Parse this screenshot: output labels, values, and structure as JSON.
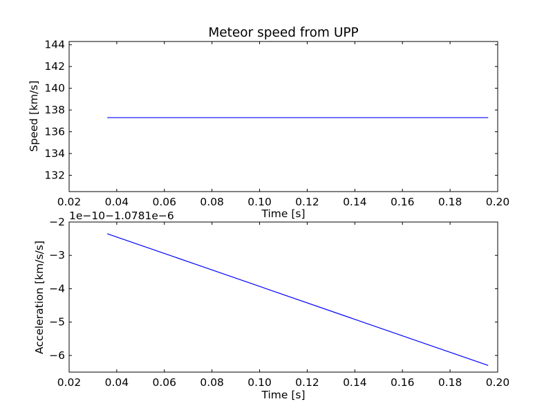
{
  "chart_data": [
    {
      "type": "line",
      "title": "Meteor speed from  UPP",
      "xlabel": "Time [s]",
      "ylabel": "Speed [km/s]",
      "xlim": [
        0.02,
        0.2
      ],
      "ylim": [
        130.5,
        144.3
      ],
      "xticks": [
        0.02,
        0.04,
        0.06,
        0.08,
        0.1,
        0.12,
        0.14,
        0.16,
        0.18,
        0.2
      ],
      "xtick_labels": [
        "0.02",
        "0.04",
        "0.06",
        "0.08",
        "0.10",
        "0.12",
        "0.14",
        "0.16",
        "0.18",
        "0.20"
      ],
      "yticks": [
        132,
        134,
        136,
        138,
        140,
        142,
        144
      ],
      "ytick_labels": [
        "132",
        "134",
        "136",
        "138",
        "140",
        "142",
        "144"
      ],
      "grid": false,
      "series": [
        {
          "x": [
            0.036,
            0.196
          ],
          "y": [
            137.3,
            137.3
          ],
          "color": "#0000ff"
        }
      ]
    },
    {
      "type": "line",
      "title": "",
      "xlabel": "Time [s]",
      "ylabel": "Acceleration [km/s/s]",
      "offset_text": "1e−10−1.0781e−6",
      "xlim": [
        0.02,
        0.2
      ],
      "ylim": [
        -6.5,
        -2.0
      ],
      "xticks": [
        0.02,
        0.04,
        0.06,
        0.08,
        0.1,
        0.12,
        0.14,
        0.16,
        0.18,
        0.2
      ],
      "xtick_labels": [
        "0.02",
        "0.04",
        "0.06",
        "0.08",
        "0.10",
        "0.12",
        "0.14",
        "0.16",
        "0.18",
        "0.20"
      ],
      "yticks": [
        -6,
        -5,
        -4,
        -3,
        -2
      ],
      "ytick_labels": [
        "−6",
        "−5",
        "−4",
        "−3",
        "−2"
      ],
      "grid": false,
      "series": [
        {
          "x": [
            0.036,
            0.196
          ],
          "y": [
            -2.35,
            -6.3
          ],
          "color": "#0000ff"
        }
      ]
    }
  ]
}
